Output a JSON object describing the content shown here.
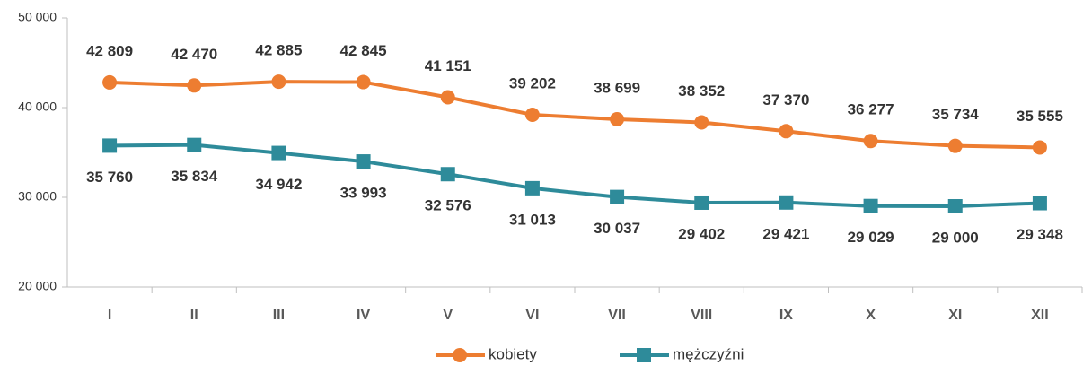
{
  "chart_data": {
    "type": "line",
    "categories": [
      "I",
      "II",
      "III",
      "IV",
      "V",
      "VI",
      "VII",
      "VIII",
      "IX",
      "X",
      "XI",
      "XII"
    ],
    "series": [
      {
        "name": "kobiety",
        "color": "#ed7d31",
        "label_color": "#b4541c",
        "values": [
          42809,
          42470,
          42885,
          42845,
          41151,
          39202,
          38699,
          38352,
          37370,
          36277,
          35734,
          35555
        ],
        "value_labels": [
          "42 809",
          "42 470",
          "42 885",
          "42 845",
          "41 151",
          "39 202",
          "38 699",
          "38 352",
          "37 370",
          "36 277",
          "35 734",
          "35 555"
        ]
      },
      {
        "name": "mężczyźni",
        "color": "#2e8b9a",
        "label_color": "#215f6e",
        "values": [
          35760,
          35834,
          34942,
          33993,
          32576,
          31013,
          30037,
          29402,
          29421,
          29029,
          29000,
          29348
        ],
        "value_labels": [
          "35 760",
          "35 834",
          "34 942",
          "33 993",
          "32 576",
          "31 013",
          "30 037",
          "29 402",
          "29 421",
          "29 029",
          "29 000",
          "29 348"
        ]
      }
    ],
    "ylim": [
      20000,
      50000
    ],
    "yticks": [
      {
        "value": 20000,
        "label": "20 000"
      },
      {
        "value": 30000,
        "label": "30 000"
      },
      {
        "value": 40000,
        "label": "40 000"
      },
      {
        "value": 50000,
        "label": "50 000"
      }
    ],
    "grid": false
  }
}
